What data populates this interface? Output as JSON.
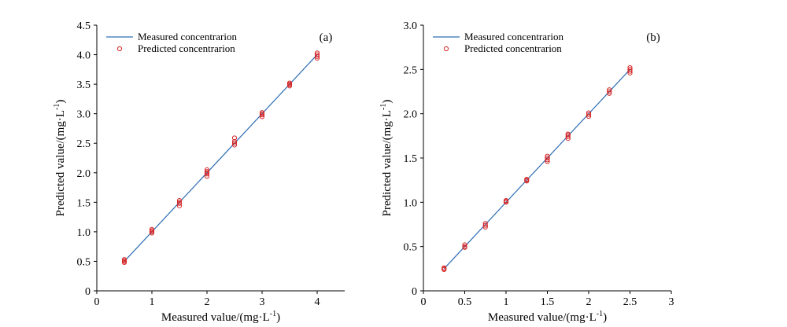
{
  "chart_data": [
    {
      "type": "scatter",
      "panel_label": "(a)",
      "xlabel": "Measured value/(mg·L",
      "ylabel": "Predicted value/(mg·L",
      "unit_exponent": "-1",
      "xlim": [
        0,
        4.5
      ],
      "ylim": [
        0,
        4.5
      ],
      "xticks": [
        "0",
        "1",
        "2",
        "3",
        "4"
      ],
      "xtick_values": [
        0,
        1,
        2,
        3,
        4
      ],
      "yticks": [
        "0",
        "0.5",
        "1.0",
        "1.5",
        "2.0",
        "2.5",
        "3.0",
        "3.5",
        "4.0",
        "4.5"
      ],
      "ytick_values": [
        0,
        0.5,
        1.0,
        1.5,
        2.0,
        2.5,
        3.0,
        3.5,
        4.0,
        4.5
      ],
      "legend": {
        "position": "top-left",
        "line_label": "Measured concentrarion",
        "marker_label": "Predicted concentrarion"
      },
      "series": [
        {
          "name": "Measured concentrarion",
          "kind": "line",
          "color": "#2e6db4",
          "x": [
            0.5,
            4.0
          ],
          "y": [
            0.5,
            4.0
          ]
        },
        {
          "name": "Predicted concentrarion",
          "kind": "scatter",
          "color": "#d62728",
          "x": [
            0.5,
            0.5,
            0.5,
            0.5,
            1,
            1,
            1,
            1,
            1.5,
            1.5,
            1.5,
            1.5,
            2,
            2,
            2,
            2,
            2,
            2.5,
            2.5,
            2.5,
            2.5,
            3,
            3,
            3,
            3,
            3.5,
            3.5,
            3.5,
            3.5,
            4,
            4,
            4,
            4
          ],
          "y": [
            0.48,
            0.5,
            0.51,
            0.53,
            0.98,
            1.0,
            1.02,
            1.04,
            1.44,
            1.48,
            1.5,
            1.53,
            1.94,
            1.98,
            2.0,
            2.02,
            2.05,
            2.47,
            2.5,
            2.53,
            2.59,
            2.95,
            2.98,
            3.0,
            3.02,
            3.47,
            3.49,
            3.5,
            3.52,
            3.94,
            3.97,
            4.0,
            4.03
          ]
        }
      ]
    },
    {
      "type": "scatter",
      "panel_label": "(b)",
      "xlabel": "Measured value/(mg·L",
      "ylabel": "Predicted value/(mg·L",
      "unit_exponent": "-1",
      "xlim": [
        0,
        3
      ],
      "ylim": [
        0,
        3.0
      ],
      "xticks": [
        "0",
        "0.5",
        "1",
        "1.5",
        "2",
        "2.5",
        "3"
      ],
      "xtick_values": [
        0,
        0.5,
        1,
        1.5,
        2,
        2.5,
        3
      ],
      "yticks": [
        "0",
        "0.5",
        "1.0",
        "1.5",
        "2.0",
        "2.5",
        "3.0"
      ],
      "ytick_values": [
        0,
        0.5,
        1.0,
        1.5,
        2.0,
        2.5,
        3.0
      ],
      "legend": {
        "position": "top-left",
        "line_label": "Measured concentrarion",
        "marker_label": "Predicted concentrarion"
      },
      "series": [
        {
          "name": "Measured concentrarion",
          "kind": "line",
          "color": "#2e6db4",
          "x": [
            0.25,
            2.5
          ],
          "y": [
            0.25,
            2.5
          ]
        },
        {
          "name": "Predicted concentrarion",
          "kind": "scatter",
          "color": "#d62728",
          "x": [
            0.25,
            0.25,
            0.25,
            0.5,
            0.5,
            0.5,
            0.75,
            0.75,
            0.75,
            1,
            1,
            1,
            1.25,
            1.25,
            1.25,
            1.5,
            1.5,
            1.5,
            1.5,
            1.75,
            1.75,
            1.75,
            1.75,
            2,
            2,
            2,
            2.25,
            2.25,
            2.25,
            2.5,
            2.5,
            2.5,
            2.5
          ],
          "y": [
            0.24,
            0.25,
            0.26,
            0.49,
            0.5,
            0.52,
            0.72,
            0.74,
            0.76,
            1.0,
            1.01,
            1.02,
            1.24,
            1.25,
            1.26,
            1.46,
            1.48,
            1.5,
            1.52,
            1.72,
            1.74,
            1.76,
            1.77,
            1.97,
            1.99,
            2.01,
            2.23,
            2.25,
            2.27,
            2.46,
            2.48,
            2.5,
            2.52
          ]
        }
      ]
    }
  ]
}
